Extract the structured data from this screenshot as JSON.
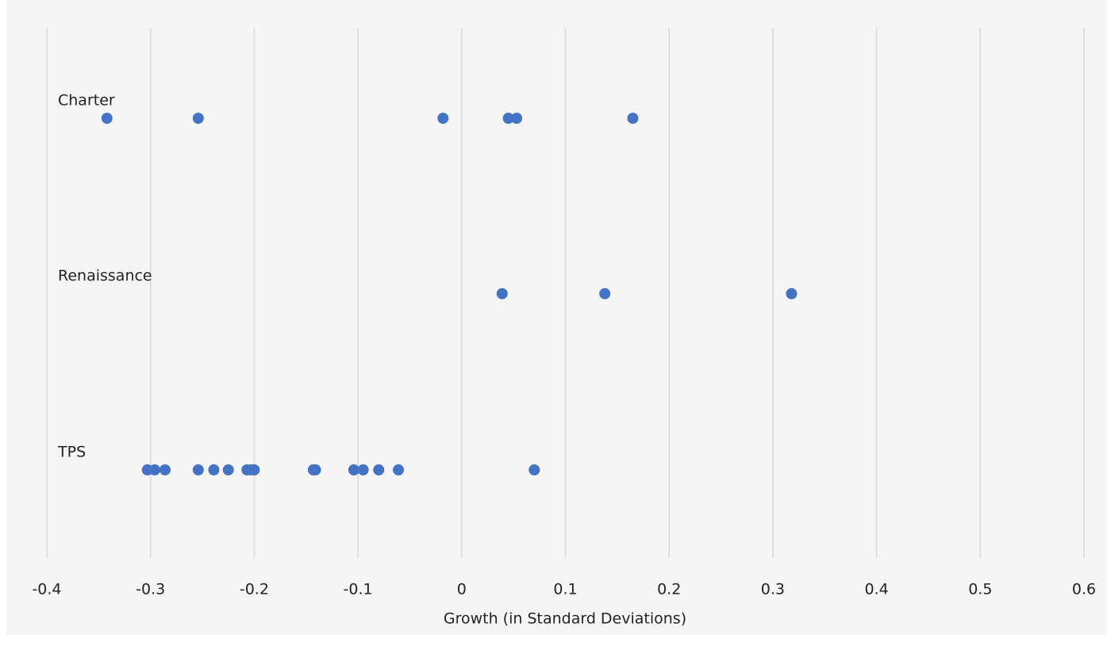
{
  "chart_data": {
    "type": "dot",
    "xlabel": "Growth (in Standard Deviations)",
    "color": "#4472c4",
    "xlim": [
      -0.4,
      0.6
    ],
    "xticks": [
      -0.4,
      -0.3,
      -0.2,
      -0.1,
      0,
      0.1,
      0.2,
      0.3,
      0.4,
      0.5,
      0.6
    ],
    "grid": true,
    "groups": [
      {
        "name": "Charter",
        "x": [
          -0.342,
          -0.254,
          -0.018,
          0.045,
          0.053,
          0.165
        ]
      },
      {
        "name": "Renaissance",
        "x": [
          0.039,
          0.138,
          0.318
        ]
      },
      {
        "name": "TPS",
        "x": [
          -0.303,
          -0.296,
          -0.286,
          -0.254,
          -0.239,
          -0.225,
          -0.207,
          -0.203,
          -0.2,
          -0.143,
          -0.141,
          -0.104,
          -0.095,
          -0.08,
          -0.061,
          0.07
        ]
      }
    ]
  }
}
